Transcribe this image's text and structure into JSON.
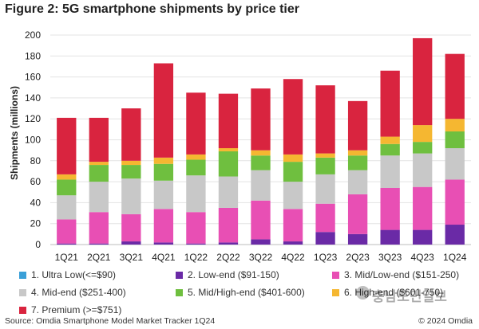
{
  "title": "Figure 2: 5G smartphone shipments by price tier",
  "source": "Source: Omdia Smartphone Model Market Tracker 1Q24",
  "copyright": "© 2024 Omdia",
  "watermark": "충남도민일보",
  "chart_data": {
    "type": "bar",
    "stacked": true,
    "categories": [
      "1Q21",
      "2Q21",
      "3Q21",
      "4Q21",
      "1Q22",
      "2Q22",
      "3Q22",
      "4Q22",
      "1Q23",
      "2Q23",
      "3Q23",
      "4Q23",
      "1Q24"
    ],
    "ylabel": "Shipments (millions)",
    "ylim": [
      0,
      200
    ],
    "yticks": [
      0,
      20,
      40,
      60,
      80,
      100,
      120,
      140,
      160,
      180,
      200
    ],
    "grid": true,
    "legend_position": "bottom",
    "series": [
      {
        "name": "1. Ultra Low(<=$90)",
        "color": "#3aa0d8",
        "values": [
          0,
          0,
          0,
          0,
          0,
          0,
          0,
          0,
          0,
          0,
          0,
          0,
          0
        ]
      },
      {
        "name": "2. Low-end ($91-150)",
        "color": "#6a2aa6",
        "values": [
          1,
          1,
          3,
          2,
          1,
          2,
          5,
          3,
          12,
          10,
          14,
          14,
          19
        ]
      },
      {
        "name": "3. Mid/Low-end ($151-250)",
        "color": "#e84fb4",
        "values": [
          23,
          30,
          26,
          32,
          30,
          33,
          37,
          31,
          27,
          38,
          40,
          41,
          43
        ]
      },
      {
        "name": "4. Mid-end ($251-400)",
        "color": "#c8c8c8",
        "values": [
          23,
          29,
          34,
          27,
          35,
          30,
          29,
          26,
          28,
          23,
          31,
          32,
          30
        ]
      },
      {
        "name": "5. Mid/High-end ($401-600)",
        "color": "#6fbf3f",
        "values": [
          15,
          16,
          13,
          16,
          15,
          24,
          14,
          19,
          16,
          14,
          11,
          11,
          16
        ]
      },
      {
        "name": "6. High-end ($601-750)",
        "color": "#f5b731",
        "values": [
          5,
          3,
          4,
          6,
          5,
          3,
          5,
          7,
          4,
          5,
          7,
          16,
          12
        ]
      },
      {
        "name": "7. Premium (>=$751)",
        "color": "#d9243f",
        "values": [
          54,
          42,
          50,
          90,
          59,
          52,
          59,
          72,
          65,
          47,
          63,
          83,
          62
        ]
      }
    ]
  }
}
